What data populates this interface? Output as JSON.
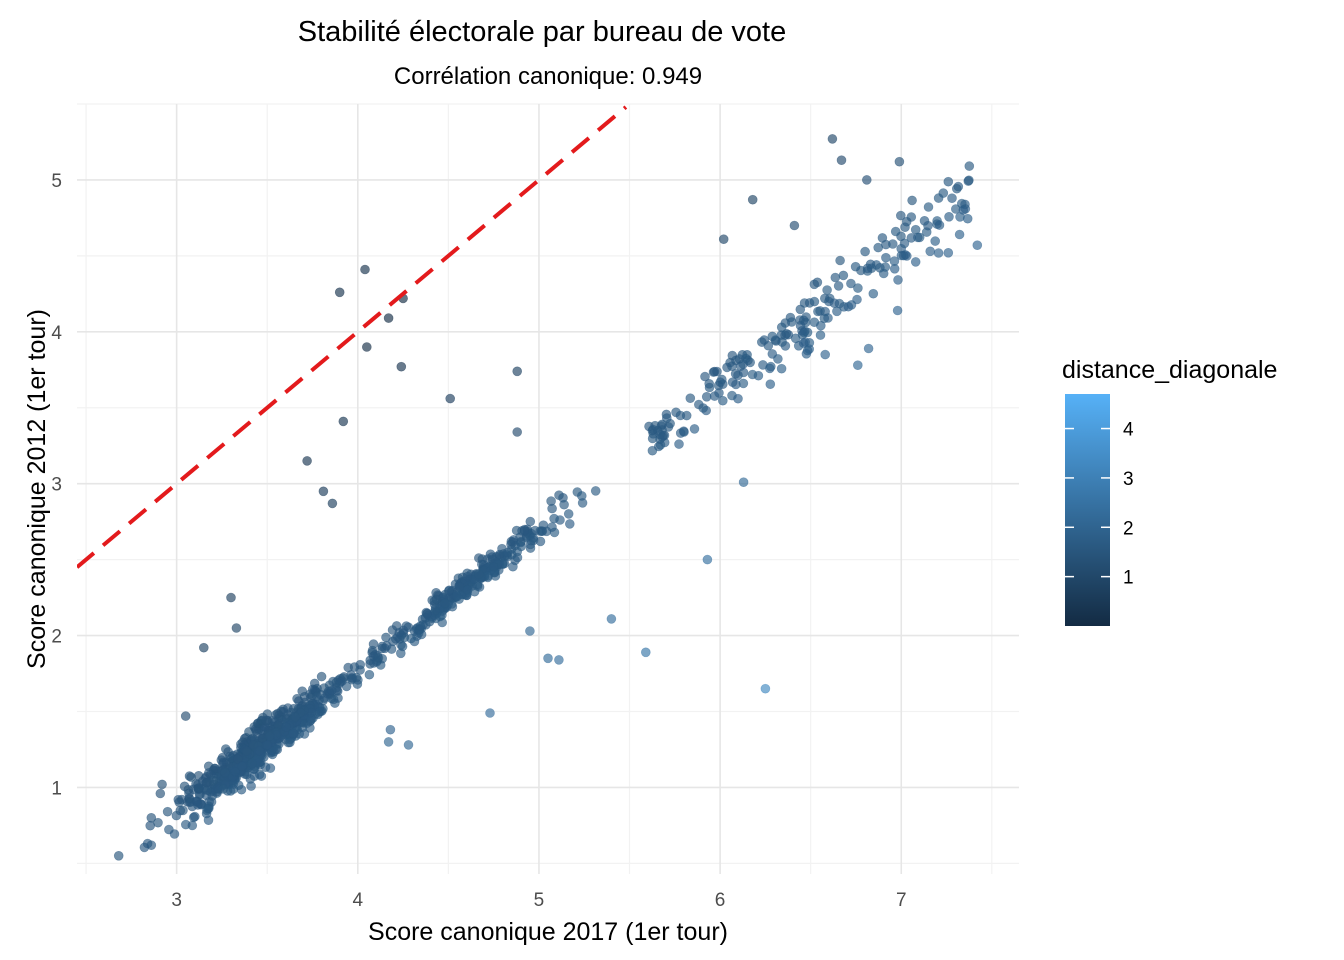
{
  "chart_data": {
    "type": "scatter",
    "title": "Stabilité électorale par bureau de vote",
    "subtitle": "Corrélation canonique: 0.949",
    "xlabel": "Score canonique 2017 (1er tour)",
    "ylabel": "Score canonique 2012 (1er tour)",
    "xlim": [
      2.45,
      7.65
    ],
    "ylim": [
      0.43,
      5.5
    ],
    "x_ticks": [
      3,
      4,
      5,
      6,
      7
    ],
    "y_ticks": [
      1,
      2,
      3,
      4,
      5
    ],
    "grid": true,
    "reference_line": {
      "slope": 1,
      "intercept": 0,
      "style": "dashed",
      "color": "#e31a1c",
      "x_from": 2.45,
      "x_to": 5.48
    },
    "color_legend": {
      "title": "distance_diagonale",
      "ticks": [
        1,
        2,
        3,
        4
      ],
      "range": [
        0,
        4.7
      ],
      "low_color": "#132b43",
      "high_color": "#56b1f7",
      "position": "right"
    },
    "point_color_encoding": "distance from diagonal",
    "notable_points": [
      [
        2.68,
        0.55
      ],
      [
        2.84,
        0.63
      ],
      [
        2.86,
        0.8
      ],
      [
        2.92,
        1.02
      ],
      [
        2.91,
        0.96
      ],
      [
        2.95,
        0.84
      ],
      [
        3.05,
        1.47
      ],
      [
        3.15,
        1.92
      ],
      [
        3.3,
        2.25
      ],
      [
        3.33,
        2.05
      ],
      [
        3.9,
        4.26
      ],
      [
        4.04,
        4.41
      ],
      [
        4.05,
        3.9
      ],
      [
        4.17,
        4.09
      ],
      [
        4.24,
        3.77
      ],
      [
        4.25,
        4.22
      ],
      [
        3.92,
        3.41
      ],
      [
        3.72,
        3.15
      ],
      [
        3.81,
        2.95
      ],
      [
        3.86,
        2.87
      ],
      [
        4.51,
        3.56
      ],
      [
        4.88,
        3.74
      ],
      [
        4.88,
        3.34
      ],
      [
        4.73,
        1.49
      ],
      [
        4.95,
        2.03
      ],
      [
        5.05,
        1.85
      ],
      [
        5.11,
        1.84
      ],
      [
        5.4,
        2.11
      ],
      [
        5.59,
        1.89
      ],
      [
        5.93,
        2.5
      ],
      [
        6.13,
        3.01
      ],
      [
        6.25,
        1.65
      ],
      [
        6.58,
        3.85
      ],
      [
        6.76,
        3.78
      ],
      [
        6.82,
        3.89
      ],
      [
        6.98,
        4.14
      ],
      [
        6.62,
        5.27
      ],
      [
        6.67,
        5.13
      ],
      [
        6.99,
        5.12
      ],
      [
        6.81,
        5.0
      ],
      [
        7.28,
        4.88
      ],
      [
        7.42,
        4.57
      ],
      [
        7.26,
        4.52
      ],
      [
        7.08,
        4.46
      ],
      [
        7.16,
        4.53
      ],
      [
        6.18,
        4.87
      ],
      [
        6.02,
        4.61
      ],
      [
        6.41,
        4.7
      ],
      [
        4.18,
        1.38
      ],
      [
        4.17,
        1.3
      ],
      [
        4.28,
        1.28
      ]
    ],
    "cluster_trend": {
      "slope": 0.93,
      "intercept": -1.95,
      "x_range": [
        2.7,
        7.4
      ]
    }
  }
}
